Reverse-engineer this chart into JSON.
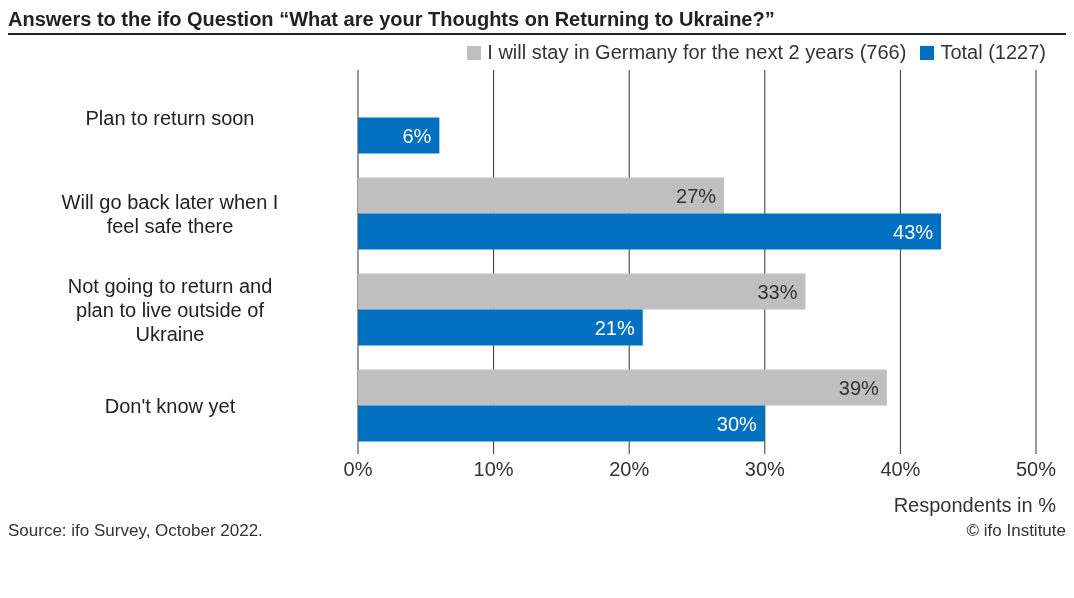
{
  "chart_data": {
    "type": "bar",
    "orientation": "horizontal",
    "title": "Answers to the ifo Question “What are your Thoughts on Returning to Ukraine?”",
    "categories": [
      "Plan to return soon",
      "Will go back later when I feel safe there",
      "Not going to return and plan to live outside of Ukraine",
      "Don't know yet"
    ],
    "series": [
      {
        "name": "I will stay in Germany for the next 2 years (766)",
        "color": "#bfbfbf",
        "values": [
          null,
          27,
          33,
          39
        ],
        "value_labels": [
          null,
          "27%",
          "33%",
          "39%"
        ]
      },
      {
        "name": "Total (1227)",
        "color": "#0070c0",
        "values": [
          6,
          43,
          21,
          30
        ],
        "value_labels": [
          "6%",
          "43%",
          "21%",
          "30%"
        ]
      }
    ],
    "xlim": [
      0,
      50
    ],
    "xticks": [
      {
        "value": 0,
        "label": "0%"
      },
      {
        "value": 10,
        "label": "10%"
      },
      {
        "value": 20,
        "label": "20%"
      },
      {
        "value": 30,
        "label": "30%"
      },
      {
        "value": 40,
        "label": "40%"
      },
      {
        "value": 50,
        "label": "50%"
      }
    ],
    "xlabel": "Respondents in %",
    "grid": "x",
    "legend": "top right",
    "annotations": [
      "Source: ifo Survey, October 2022.",
      "© ifo Institute"
    ]
  }
}
